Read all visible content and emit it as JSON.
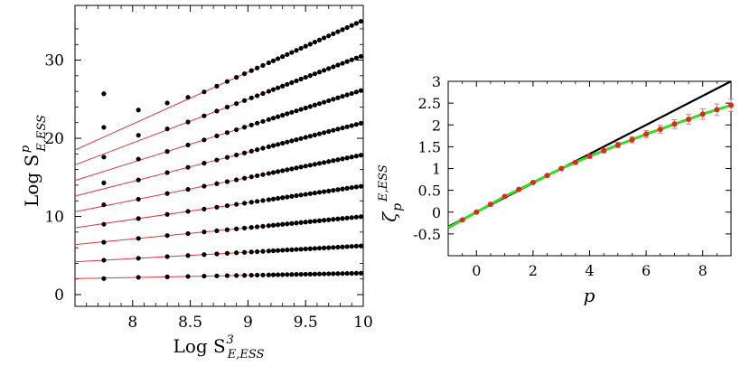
{
  "chart_data": [
    {
      "type": "scatter",
      "xlabel_main": "Log S",
      "xlabel_sup": "3",
      "xlabel_sub": "E,ESS",
      "ylabel_main": "Log S",
      "ylabel_sup": "p",
      "ylabel_sub": "E,ESS",
      "xlim": [
        7.5,
        10.0
      ],
      "ylim": [
        -1.5,
        37
      ],
      "xticks": [
        8,
        8.5,
        9,
        9.5,
        10
      ],
      "xtick_labels": [
        "8",
        "8.5",
        "9",
        "9.5",
        "10"
      ],
      "yticks": [
        0,
        10,
        20,
        30
      ],
      "ytick_labels": [
        "0",
        "10",
        "20",
        "30"
      ],
      "x_points": [
        7.75,
        8.05,
        8.3,
        8.48,
        8.62,
        8.73,
        8.82,
        8.9,
        8.97,
        9.03,
        9.08,
        9.13,
        9.18,
        9.22,
        9.26,
        9.3,
        9.34,
        9.38,
        9.42,
        9.46,
        9.5,
        9.54,
        9.58,
        9.62,
        9.66,
        9.7,
        9.74,
        9.78,
        9.82,
        9.86,
        9.9,
        9.94,
        9.98
      ],
      "series": [
        {
          "fit_left": 2.05,
          "fit_right": 2.75,
          "first_point": 2.05
        },
        {
          "fit_left": 4.2,
          "fit_right": 6.25,
          "first_point": 4.4
        },
        {
          "fit_left": 6.4,
          "fit_right": 10.0,
          "first_point": 6.7
        },
        {
          "fit_left": 8.55,
          "fit_right": 13.9,
          "first_point": 9.0
        },
        {
          "fit_left": 10.6,
          "fit_right": 17.9,
          "first_point": 11.5
        },
        {
          "fit_left": 12.6,
          "fit_right": 22.0,
          "first_point": 14.3
        },
        {
          "fit_left": 14.6,
          "fit_right": 26.2,
          "first_point": 17.6
        },
        {
          "fit_left": 16.6,
          "fit_right": 30.6,
          "first_point": 21.4
        },
        {
          "fit_left": 18.5,
          "fit_right": 35.1,
          "first_point": 25.7
        }
      ],
      "point_color": "#000000",
      "fit_color": "#e8343c"
    },
    {
      "type": "line",
      "xlabel": "p",
      "ylabel_main": "ζ",
      "ylabel_sub": "p",
      "ylabel_sup": "E,ESS",
      "xlim": [
        -1,
        9
      ],
      "ylim": [
        -1,
        3
      ],
      "xticks": [
        0,
        2,
        4,
        6,
        8
      ],
      "xtick_labels": [
        "0",
        "2",
        "4",
        "6",
        "8"
      ],
      "yticks": [
        -0.5,
        0,
        0.5,
        1,
        1.5,
        2,
        2.5,
        3
      ],
      "ytick_labels": [
        "-0.5",
        "0",
        "0.5",
        "1",
        "1.5",
        "2",
        "2.5",
        "3"
      ],
      "reference_line": {
        "slope": 0.3333,
        "color": "#000000"
      },
      "fit_curve_color": "#33dd22",
      "points": [
        {
          "x": -0.5,
          "y": -0.18,
          "err": 0.02
        },
        {
          "x": 0.0,
          "y": 0.0,
          "err": 0.01
        },
        {
          "x": 0.5,
          "y": 0.18,
          "err": 0.02
        },
        {
          "x": 1.0,
          "y": 0.36,
          "err": 0.02
        },
        {
          "x": 1.5,
          "y": 0.52,
          "err": 0.02
        },
        {
          "x": 2.0,
          "y": 0.68,
          "err": 0.02
        },
        {
          "x": 2.5,
          "y": 0.84,
          "err": 0.03
        },
        {
          "x": 3.0,
          "y": 1.0,
          "err": 0.01
        },
        {
          "x": 3.5,
          "y": 1.14,
          "err": 0.03
        },
        {
          "x": 4.0,
          "y": 1.28,
          "err": 0.04
        },
        {
          "x": 4.5,
          "y": 1.41,
          "err": 0.05
        },
        {
          "x": 5.0,
          "y": 1.54,
          "err": 0.06
        },
        {
          "x": 5.5,
          "y": 1.66,
          "err": 0.07
        },
        {
          "x": 6.0,
          "y": 1.79,
          "err": 0.08
        },
        {
          "x": 6.5,
          "y": 1.9,
          "err": 0.09
        },
        {
          "x": 7.0,
          "y": 2.02,
          "err": 0.1
        },
        {
          "x": 7.5,
          "y": 2.13,
          "err": 0.11
        },
        {
          "x": 8.0,
          "y": 2.25,
          "err": 0.12
        },
        {
          "x": 8.5,
          "y": 2.35,
          "err": 0.13
        },
        {
          "x": 9.0,
          "y": 2.45,
          "err": 0.14
        }
      ],
      "point_color": "#e8231c"
    }
  ]
}
